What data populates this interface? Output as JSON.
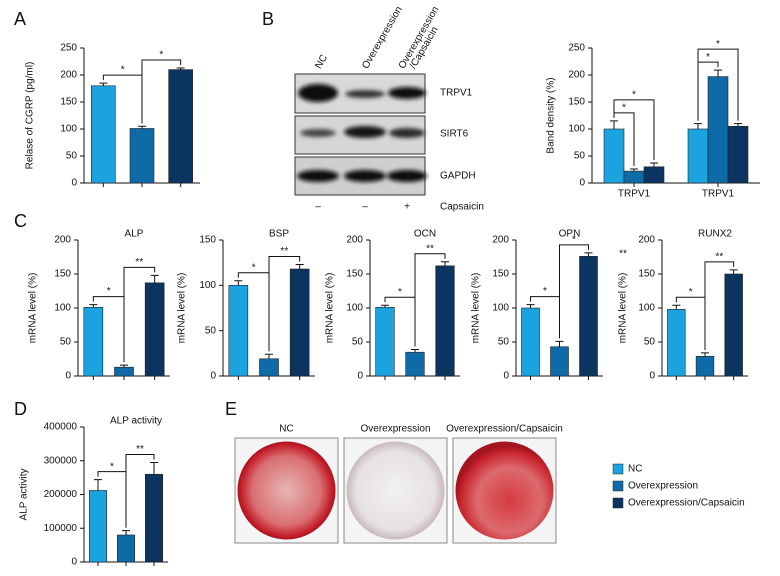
{
  "panel_labels": [
    "A",
    "B",
    "C",
    "D",
    "E"
  ],
  "legend": [
    {
      "name": "NC",
      "color": "#1aa3df"
    },
    {
      "name": "Overexpression",
      "color": "#0f6ba8"
    },
    {
      "name": "Overexpression/Capsaicin",
      "color": "#0c3460"
    }
  ],
  "blot": {
    "lanes": [
      {
        "lines": [
          "NC"
        ]
      },
      {
        "lines": [
          "Overexpression"
        ]
      },
      {
        "lines": [
          "Overexpression",
          "/Capsaicin"
        ]
      }
    ],
    "rows": [
      "TRPV1",
      "SIRT6",
      "GAPDH"
    ],
    "treatment": {
      "label": "Capsaicin",
      "marks": [
        "–",
        "–",
        "+"
      ]
    }
  },
  "stain": {
    "labels": [
      "NC",
      "Overexpression",
      "Overexpression/Capsaicin"
    ]
  },
  "extra_text": "**",
  "chart_data": [
    {
      "type": "bar",
      "y_label": "Relase of CGRP (pg/ml)",
      "ylim": [
        0,
        250
      ],
      "yticks": [
        0,
        50,
        100,
        150,
        200,
        250
      ],
      "values": [
        180,
        101,
        210
      ],
      "errors": [
        5,
        4,
        3
      ],
      "annotations": [
        "*",
        "*"
      ]
    },
    {
      "type": "bar",
      "y_label": "Band density (%)",
      "ylim": [
        0,
        250
      ],
      "yticks": [
        0,
        50,
        100,
        150,
        200,
        250
      ],
      "categories": [
        "TRPV1",
        "TRPV1"
      ],
      "series": [
        {
          "values": [
            100,
            100
          ],
          "errors": [
            15,
            10
          ]
        },
        {
          "values": [
            22,
            197
          ],
          "errors": [
            4,
            12
          ]
        },
        {
          "values": [
            30,
            105
          ],
          "errors": [
            7,
            5
          ]
        }
      ],
      "annotations": [
        "*",
        "*",
        "*",
        "*"
      ]
    },
    {
      "type": "bar",
      "title": "ALP",
      "y_label": "mRNA level (%)",
      "ylim": [
        0,
        200
      ],
      "yticks": [
        0,
        50,
        100,
        150,
        200
      ],
      "values": [
        101,
        13,
        137
      ],
      "errors": [
        4,
        3,
        11
      ],
      "annotations": [
        "*",
        "**"
      ]
    },
    {
      "type": "bar",
      "title": "BSP",
      "y_label": "mRNA level (%)",
      "ylim": [
        0,
        150
      ],
      "yticks": [
        0,
        50,
        100,
        150
      ],
      "values": [
        100,
        19,
        118
      ],
      "errors": [
        5,
        5,
        5
      ],
      "annotations": [
        "*",
        "**"
      ]
    },
    {
      "type": "bar",
      "title": "OCN",
      "y_label": "mRNA level (%)",
      "ylim": [
        0,
        200
      ],
      "yticks": [
        0,
        50,
        100,
        150,
        200
      ],
      "values": [
        101,
        35,
        162
      ],
      "errors": [
        3,
        4,
        6
      ],
      "annotations": [
        "*",
        "**"
      ]
    },
    {
      "type": "bar",
      "title": "OPN",
      "y_label": "mRNA level (%)",
      "ylim": [
        0,
        200
      ],
      "yticks": [
        0,
        50,
        100,
        150,
        200
      ],
      "values": [
        100,
        43,
        176
      ],
      "errors": [
        5,
        8,
        5
      ],
      "annotations": [
        "*",
        "*"
      ]
    },
    {
      "type": "bar",
      "title": "RUNX2",
      "y_label": "mRNA level (%)",
      "ylim": [
        0,
        200
      ],
      "yticks": [
        0,
        50,
        100,
        150,
        200
      ],
      "values": [
        98,
        29,
        150
      ],
      "errors": [
        6,
        5,
        6
      ],
      "annotations": [
        "*",
        "**"
      ]
    },
    {
      "type": "bar",
      "title": "ALP activity",
      "y_label": "ALP activity",
      "ylim": [
        0,
        400000
      ],
      "yticks": [
        0,
        100000,
        200000,
        300000,
        400000
      ],
      "values": [
        212000,
        80000,
        260000
      ],
      "errors": [
        32000,
        13000,
        35000
      ],
      "annotations": [
        "*",
        "**"
      ]
    }
  ]
}
